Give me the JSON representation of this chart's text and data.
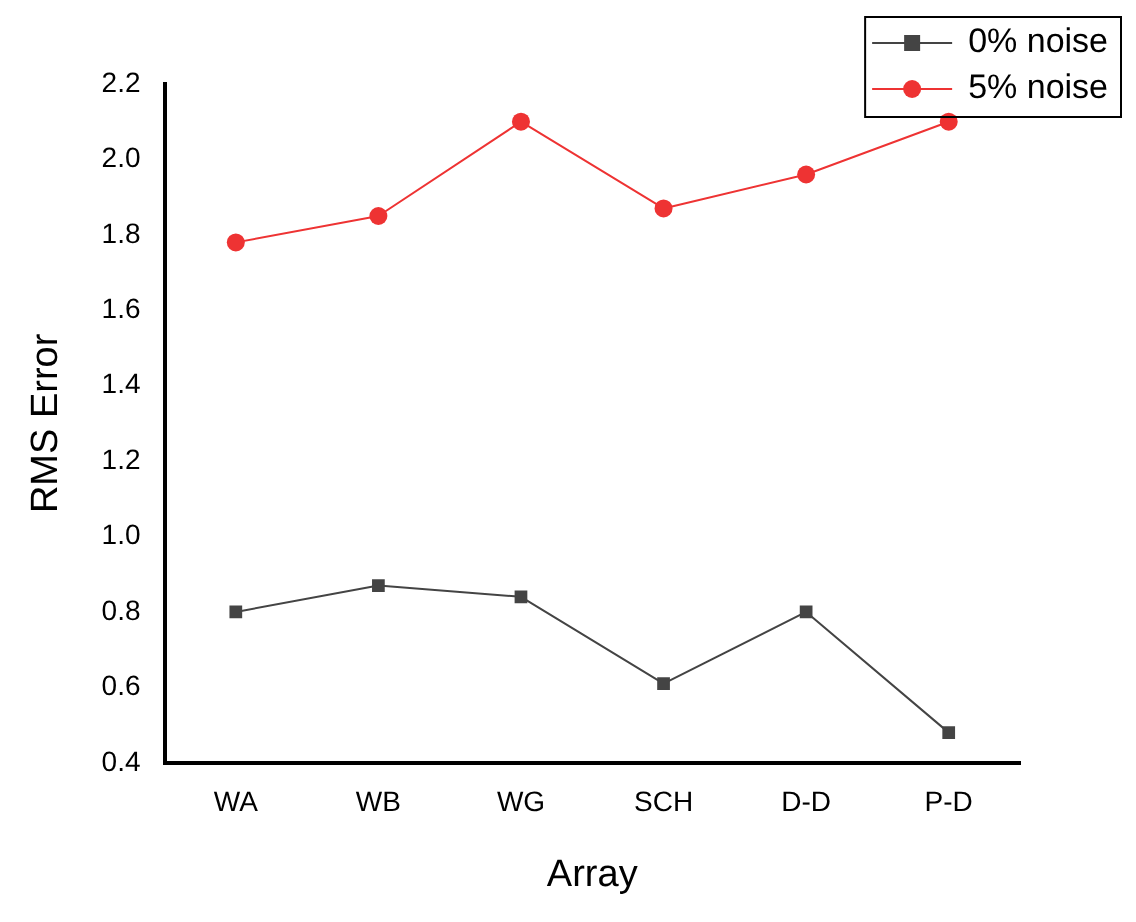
{
  "chart_data": {
    "type": "line",
    "xlabel": "Array",
    "ylabel": "RMS Error",
    "categories": [
      "WA",
      "WB",
      "WG",
      "SCH",
      "D-D",
      "P-D"
    ],
    "series": [
      {
        "name": "0% noise",
        "color": "#444444",
        "marker": "square",
        "values": [
          0.8,
          0.87,
          0.84,
          0.61,
          0.8,
          0.48
        ]
      },
      {
        "name": "5% noise",
        "color": "#ee3333",
        "marker": "circle",
        "values": [
          1.78,
          1.85,
          2.1,
          1.87,
          1.96,
          2.1
        ]
      }
    ],
    "ylim": [
      0.4,
      2.2
    ],
    "yticks": [
      {
        "value": 0.4,
        "label": "0.4"
      },
      {
        "value": 0.6,
        "label": "0.6"
      },
      {
        "value": 0.8,
        "label": "0.8"
      },
      {
        "value": 1.0,
        "label": "1.0"
      },
      {
        "value": 1.2,
        "label": "1.2"
      },
      {
        "value": 1.4,
        "label": "1.4"
      },
      {
        "value": 1.6,
        "label": "1.6"
      },
      {
        "value": 1.8,
        "label": "1.8"
      },
      {
        "value": 2.0,
        "label": "2.0"
      },
      {
        "value": 2.2,
        "label": "2.2"
      }
    ],
    "grid": false,
    "legend": "top right",
    "line_style": "solid"
  }
}
